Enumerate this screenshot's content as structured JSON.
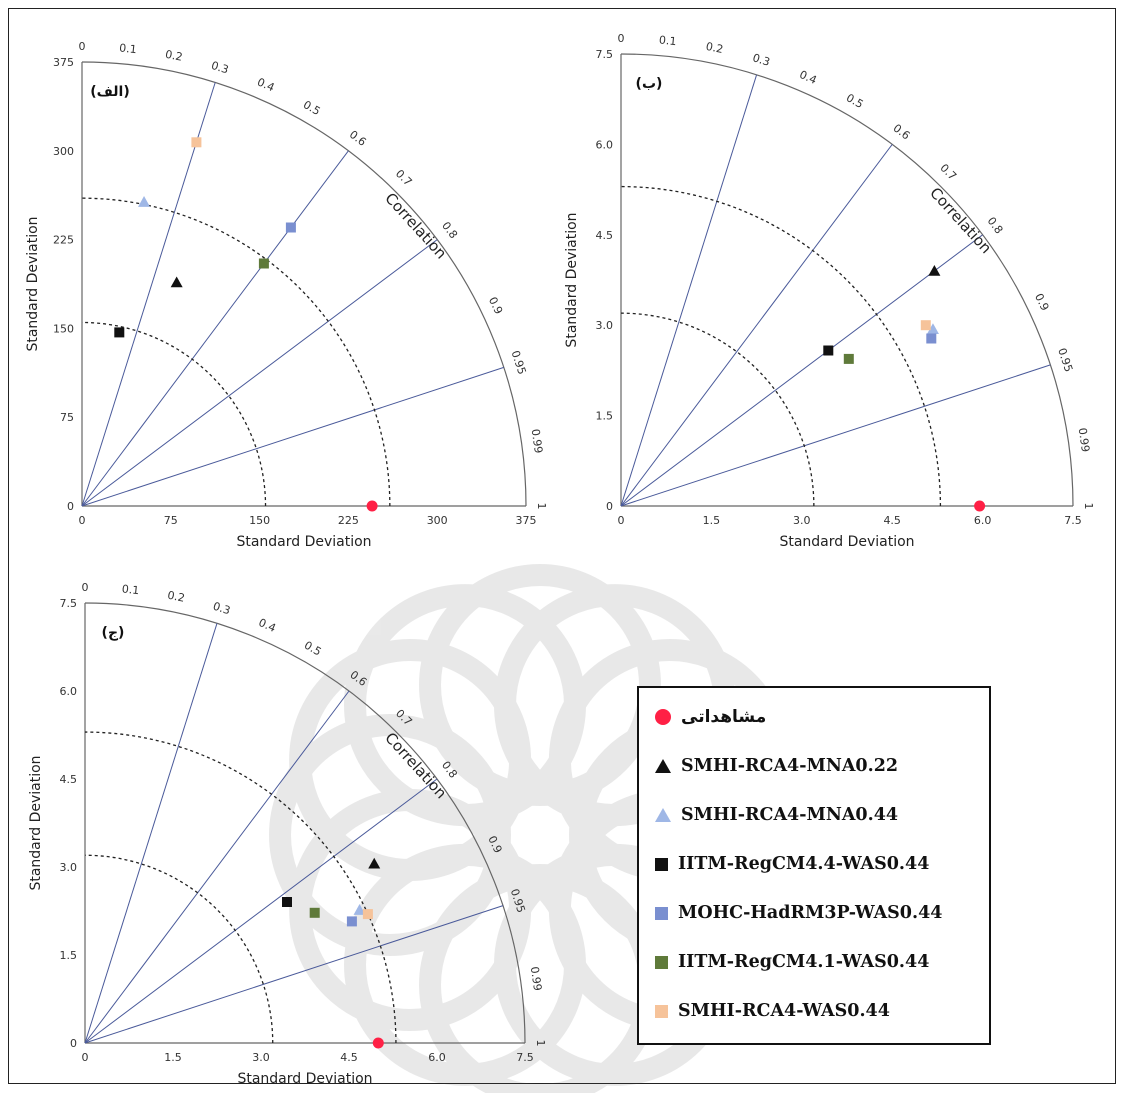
{
  "colors": {
    "observed": "#ff2045",
    "SMHI-RCA4-MNA0.22": "#111111",
    "SMHI-RCA4-MNA0.44": "#9fb7e6",
    "IITM-RegCM4.4-WAS0.44": "#111111",
    "MOHC-HadRM3P-WAS0.44": "#7a8fd0",
    "IITM-RegCM4.1-WAS0.44": "#5f7a3a",
    "SMHI-RCA4-WAS0.44": "#f6c39a"
  },
  "legend": {
    "items": [
      {
        "key": "observed",
        "label": "مشاهداتی",
        "marker": "circle",
        "rtl": true
      },
      {
        "key": "SMHI-RCA4-MNA0.22",
        "label": "SMHI-RCA4-MNA0.22",
        "marker": "triangle"
      },
      {
        "key": "SMHI-RCA4-MNA0.44",
        "label": "SMHI-RCA4-MNA0.44",
        "marker": "triangle"
      },
      {
        "key": "IITM-RegCM4.4-WAS0.44",
        "label": "IITM-RegCM4.4-WAS0.44",
        "marker": "square"
      },
      {
        "key": "MOHC-HadRM3P-WAS0.44",
        "label": "MOHC-HadRM3P-WAS0.44",
        "marker": "square"
      },
      {
        "key": "IITM-RegCM4.1-WAS0.44",
        "label": "IITM-RegCM4.1-WAS0.44",
        "marker": "square"
      },
      {
        "key": "SMHI-RCA4-WAS0.44",
        "label": "SMHI-RCA4-WAS0.44",
        "marker": "square"
      }
    ]
  },
  "chart_data": [
    {
      "type": "taylor",
      "panel_label": "(الف)",
      "xlabel": "Standard Deviation",
      "ylabel": "Standard Deviation",
      "arc_label": "Correlation",
      "std_max": 375,
      "ticks": [
        "0",
        "75",
        "150",
        "225",
        "300",
        "375"
      ],
      "tick_values": [
        0,
        75,
        150,
        225,
        300,
        375
      ],
      "rms_arcs": [
        155,
        260
      ],
      "correlation_ticks": [
        "0",
        "0.1",
        "0.2",
        "0.3",
        "0.4",
        "0.5",
        "0.6",
        "0.7",
        "0.8",
        "0.9",
        "0.95",
        "0.99",
        "1"
      ],
      "correlation_lines": [
        0.3,
        0.6,
        0.8,
        0.95
      ],
      "points": [
        {
          "key": "observed",
          "std": 245,
          "corr": 1.0
        },
        {
          "key": "SMHI-RCA4-MNA0.22",
          "std": 205,
          "corr": 0.39
        },
        {
          "key": "SMHI-RCA4-MNA0.44",
          "std": 262,
          "corr": 0.2
        },
        {
          "key": "IITM-RegCM4.4-WAS0.44",
          "std": 150,
          "corr": 0.21
        },
        {
          "key": "MOHC-HadRM3P-WAS0.44",
          "std": 294,
          "corr": 0.6
        },
        {
          "key": "IITM-RegCM4.1-WAS0.44",
          "std": 256,
          "corr": 0.6
        },
        {
          "key": "SMHI-RCA4-WAS0.44",
          "std": 322,
          "corr": 0.3
        }
      ]
    },
    {
      "type": "taylor",
      "panel_label": "(ب)",
      "xlabel": "Standard Deviation",
      "ylabel": "Standard Deviation",
      "arc_label": "Correlation",
      "std_max": 7.5,
      "ticks": [
        "0",
        "1.5",
        "3.0",
        "4.5",
        "6.0",
        "7.5"
      ],
      "tick_values": [
        0,
        1.5,
        3.0,
        4.5,
        6.0,
        7.5
      ],
      "rms_arcs": [
        3.2,
        5.3
      ],
      "correlation_ticks": [
        "0",
        "0.1",
        "0.2",
        "0.3",
        "0.4",
        "0.5",
        "0.6",
        "0.7",
        "0.8",
        "0.9",
        "0.95",
        "0.99",
        "1"
      ],
      "correlation_lines": [
        0.3,
        0.6,
        0.8,
        0.95
      ],
      "points": [
        {
          "key": "observed",
          "std": 5.95,
          "corr": 1.0
        },
        {
          "key": "SMHI-RCA4-MNA0.22",
          "std": 6.5,
          "corr": 0.8
        },
        {
          "key": "SMHI-RCA4-MNA0.44",
          "std": 5.95,
          "corr": 0.87
        },
        {
          "key": "IITM-RegCM4.4-WAS0.44",
          "std": 4.3,
          "corr": 0.8
        },
        {
          "key": "MOHC-HadRM3P-WAS0.44",
          "std": 5.85,
          "corr": 0.88
        },
        {
          "key": "IITM-RegCM4.1-WAS0.44",
          "std": 4.5,
          "corr": 0.84
        },
        {
          "key": "SMHI-RCA4-WAS0.44",
          "std": 5.88,
          "corr": 0.86
        }
      ]
    },
    {
      "type": "taylor",
      "panel_label": "(ج)",
      "xlabel": "Standard Deviation",
      "ylabel": "Standard Deviation",
      "arc_label": "Correlation",
      "std_max": 7.5,
      "ticks": [
        "0",
        "1.5",
        "3.0",
        "4.5",
        "6.0",
        "7.5"
      ],
      "tick_values": [
        0,
        1.5,
        3.0,
        4.5,
        6.0,
        7.5
      ],
      "rms_arcs": [
        3.2,
        5.3
      ],
      "correlation_ticks": [
        "0",
        "0.1",
        "0.2",
        "0.3",
        "0.4",
        "0.5",
        "0.6",
        "0.7",
        "0.8",
        "0.9",
        "0.95",
        "0.99",
        "1"
      ],
      "correlation_lines": [
        0.3,
        0.6,
        0.8,
        0.95
      ],
      "points": [
        {
          "key": "observed",
          "std": 5.0,
          "corr": 1.0
        },
        {
          "key": "SMHI-RCA4-MNA0.22",
          "std": 5.8,
          "corr": 0.85
        },
        {
          "key": "SMHI-RCA4-MNA0.44",
          "std": 5.2,
          "corr": 0.9
        },
        {
          "key": "IITM-RegCM4.4-WAS0.44",
          "std": 4.2,
          "corr": 0.82
        },
        {
          "key": "MOHC-HadRM3P-WAS0.44",
          "std": 5.0,
          "corr": 0.91
        },
        {
          "key": "IITM-RegCM4.1-WAS0.44",
          "std": 4.5,
          "corr": 0.87
        },
        {
          "key": "SMHI-RCA4-WAS0.44",
          "std": 5.3,
          "corr": 0.91
        }
      ]
    }
  ]
}
